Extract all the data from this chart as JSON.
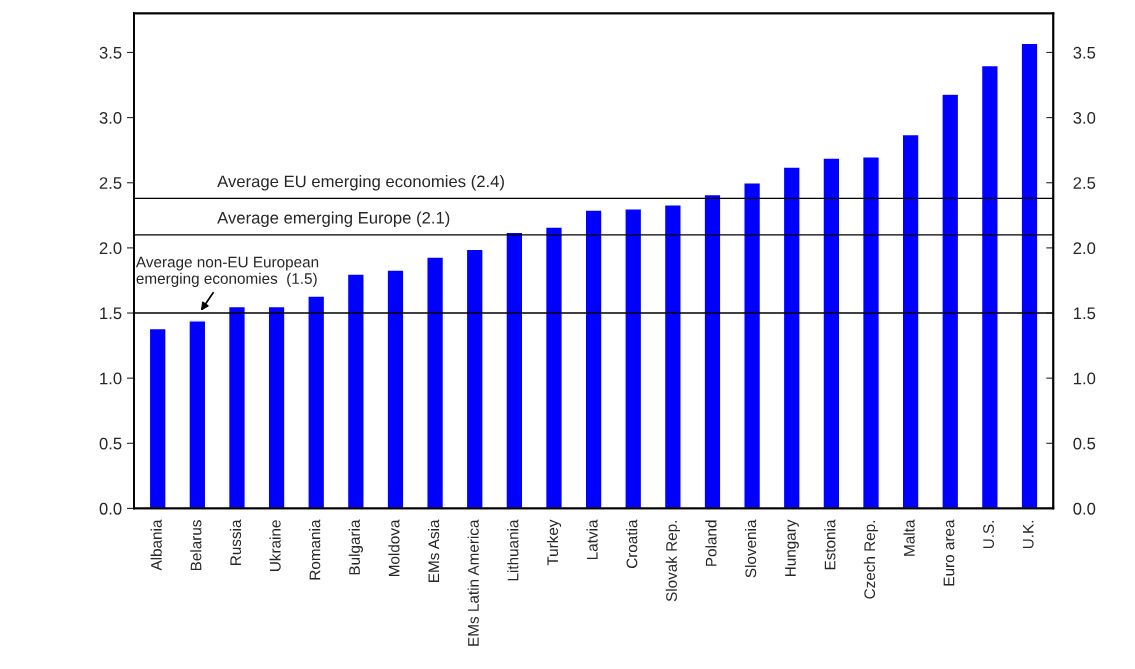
{
  "chart_data": {
    "type": "bar",
    "categories": [
      "Albania",
      "Belarus",
      "Russia",
      "Ukraine",
      "Romania",
      "Bulgaria",
      "Moldova",
      "EMs Asia",
      "EMs Latin America",
      "Lithuania",
      "Turkey",
      "Latvia",
      "Croatia",
      "Slovak Rep.",
      "Poland",
      "Slovenia",
      "Hungary",
      "Estonia",
      "Czech Rep.",
      "Malta",
      "Euro area",
      "U.S.",
      "U.K."
    ],
    "values": [
      1.38,
      1.44,
      1.55,
      1.55,
      1.63,
      1.8,
      1.83,
      1.93,
      1.99,
      2.12,
      2.16,
      2.29,
      2.3,
      2.33,
      2.41,
      2.5,
      2.62,
      2.69,
      2.7,
      2.87,
      3.18,
      3.4,
      3.57
    ],
    "color": "#0000ff",
    "ylim": [
      0,
      3.8
    ],
    "yticks": [
      {
        "value": 0,
        "label": "0.0"
      },
      {
        "value": 0.5,
        "label": "0.5"
      },
      {
        "value": 1,
        "label": "1.0"
      },
      {
        "value": 1.5,
        "label": "1.5"
      },
      {
        "value": 2,
        "label": "2.0"
      },
      {
        "value": 2.5,
        "label": "2.5"
      },
      {
        "value": 3,
        "label": "3.0"
      },
      {
        "value": 3.5,
        "label": "3.5"
      }
    ],
    "y2lim": [
      0,
      3.8
    ],
    "y2ticks": [
      {
        "value": 0,
        "label": "0.0"
      },
      {
        "value": 0.5,
        "label": "0.5"
      },
      {
        "value": 1,
        "label": "1.0"
      },
      {
        "value": 1.5,
        "label": "1.5"
      },
      {
        "value": 2,
        "label": "2.0"
      },
      {
        "value": 2.5,
        "label": "2.5"
      },
      {
        "value": 3,
        "label": "3.0"
      },
      {
        "value": 3.5,
        "label": "3.5"
      }
    ],
    "ref_lines": [
      {
        "axis": "y",
        "value": 2.38,
        "label": "Average EU emerging economies (2.4)",
        "color": "#000000"
      },
      {
        "axis": "y",
        "value": 2.1,
        "label": "Average emerging Europe (2.1)",
        "color": "#000000"
      },
      {
        "axis": "y",
        "value": 1.5,
        "label": "Average non-EU European\nemerging economies  (1.5)",
        "color": "#000000"
      }
    ],
    "grid": false,
    "legend": false
  }
}
